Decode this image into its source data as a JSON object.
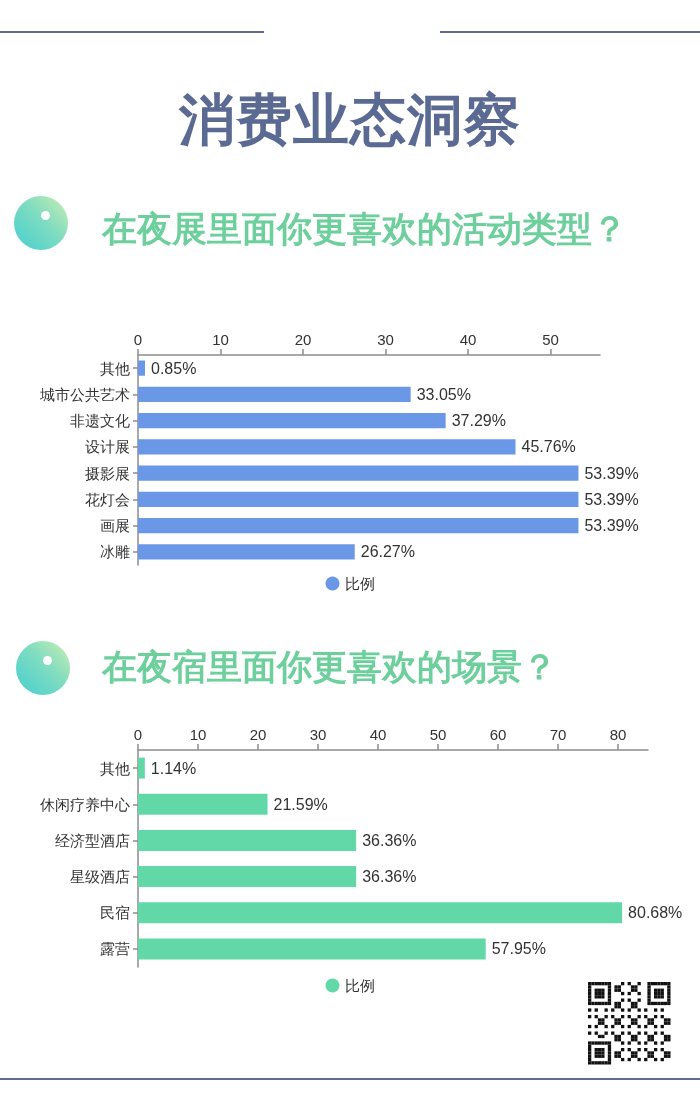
{
  "chart_data": [
    {
      "type": "other",
      "title": "消费业态洞察"
    },
    {
      "type": "bar",
      "orientation": "horizontal",
      "title": "在夜展里面你更喜欢的活动类型？",
      "categories": [
        "其他",
        "城市公共艺术",
        "非遗文化",
        "设计展",
        "摄影展",
        "花灯会",
        "画展",
        "冰雕"
      ],
      "series": [
        {
          "name": "比例",
          "color": "#6a98e6",
          "values": [
            0.85,
            33.05,
            37.29,
            45.76,
            53.39,
            53.39,
            53.39,
            26.27
          ],
          "value_labels": [
            "0.85%",
            "33.05%",
            "37.29%",
            "45.76%",
            "53.39%",
            "53.39%",
            "53.39%",
            "26.27%"
          ]
        }
      ],
      "xlim": [
        0,
        56
      ],
      "xticks": [
        0,
        10,
        20,
        30,
        40,
        50
      ],
      "legend": "bottom"
    },
    {
      "type": "bar",
      "orientation": "horizontal",
      "title": "在夜宿里面你更喜欢的场景？",
      "categories": [
        "其他",
        "休闲疗养中心",
        "经济型酒店",
        "星级酒店",
        "民宿",
        "露营"
      ],
      "series": [
        {
          "name": "比例",
          "color": "#62d8a9",
          "values": [
            1.14,
            21.59,
            36.36,
            36.36,
            80.68,
            57.95
          ],
          "value_labels": [
            "1.14%",
            "21.59%",
            "36.36%",
            "36.36%",
            "80.68%",
            "57.95%"
          ]
        }
      ],
      "xlim": [
        0,
        85
      ],
      "xticks": [
        0,
        10,
        20,
        30,
        40,
        50,
        60,
        70,
        80
      ],
      "legend": "bottom"
    }
  ]
}
